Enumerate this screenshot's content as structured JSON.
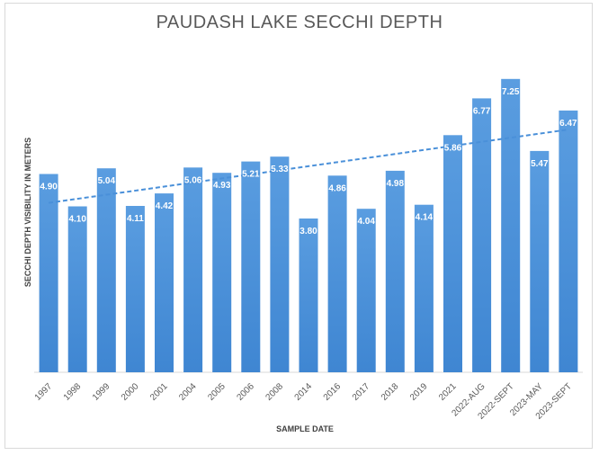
{
  "chart_data": {
    "type": "bar",
    "title": "PAUDASH LAKE SECCHI DEPTH",
    "xlabel": "SAMPLE DATE",
    "ylabel": "SECCHI DEPTH VISIBILITY IN METERS",
    "categories": [
      "1997",
      "1998",
      "1999",
      "2000",
      "2001",
      "2004",
      "2005",
      "2006",
      "2008",
      "2014",
      "2016",
      "2017",
      "2018",
      "2019",
      "2021",
      "2022-AUG",
      "2022-SEPT",
      "2023-MAY",
      "2023-SEPT"
    ],
    "values": [
      4.9,
      4.1,
      5.04,
      4.11,
      4.42,
      5.06,
      4.93,
      5.21,
      5.33,
      3.8,
      4.86,
      4.04,
      4.98,
      4.14,
      5.86,
      6.77,
      7.25,
      5.47,
      6.47
    ],
    "data_labels": [
      "4.90",
      "4.10",
      "5.04",
      "4.11",
      "4.42",
      "5.06",
      "4.93",
      "5.21",
      "5.33",
      "3.80",
      "4.86",
      "4.04",
      "4.98",
      "4.14",
      "5.86",
      "6.77",
      "7.25",
      "5.47",
      "6.47"
    ],
    "ylim": [
      0,
      8
    ],
    "trendline": {
      "type": "linear",
      "style": "dashed"
    },
    "grid": false,
    "legend": "none",
    "colors": {
      "bar": "#4a90d9",
      "bar_light": "#5b9bd5",
      "trend": "#4a90d9",
      "label": "#ffffff"
    }
  }
}
